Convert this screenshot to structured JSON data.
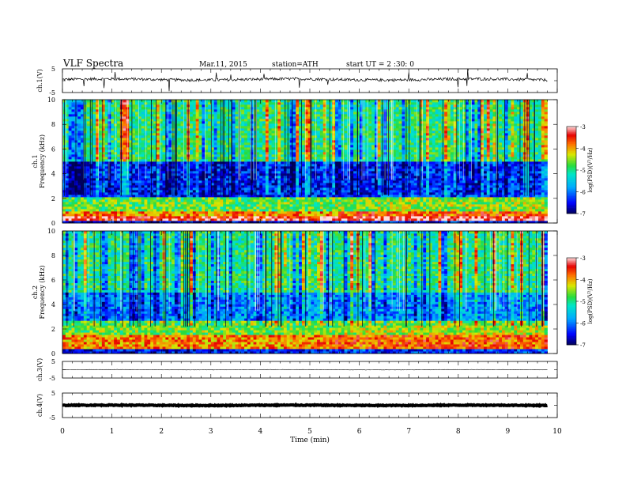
{
  "header": {
    "title": "VLF Spectra",
    "date": "Mar.11, 2015",
    "station": "station=ATH",
    "start": "start UT = 2 :30: 0"
  },
  "chart_data": [
    {
      "type": "line",
      "panel": "ch1-waveform",
      "ylabel": "ch.1(V)",
      "ylim": [
        -5,
        5
      ],
      "yticks": [
        "5",
        "-5"
      ],
      "xlim": [
        0,
        10
      ],
      "data_xmax": 9.8,
      "baseline": 0.5,
      "series_color": "#000000"
    },
    {
      "type": "heatmap",
      "panel": "ch1-spectrogram",
      "ylabel_top": "ch.1",
      "ylabel": "Frequency (kHz)",
      "ylim": [
        0,
        10
      ],
      "yticks": [
        "0",
        "2",
        "4",
        "6",
        "8",
        "10"
      ],
      "xlim": [
        0,
        10
      ],
      "data_xmax": 9.8,
      "colorbar": {
        "label": "log(PSD)(V²/Hz)",
        "range": [
          -7,
          -3
        ],
        "ticks": [
          "-3",
          "-4",
          "-5",
          "-6",
          "-7"
        ]
      },
      "bands_khz": [
        {
          "f0": 0.0,
          "f1": 0.25,
          "level": -6.6
        },
        {
          "f0": 0.25,
          "f1": 0.55,
          "level": -3.3
        },
        {
          "f0": 0.55,
          "f1": 1.0,
          "level": -3.9
        },
        {
          "f0": 1.0,
          "f1": 2.2,
          "level": -4.7
        },
        {
          "f0": 2.2,
          "f1": 5.0,
          "level": -6.4
        },
        {
          "f0": 5.0,
          "f1": 10.0,
          "level": -5.0
        }
      ]
    },
    {
      "type": "heatmap",
      "panel": "ch2-spectrogram",
      "ylabel_top": "ch.2",
      "ylabel": "Frequency (kHz)",
      "ylim": [
        0,
        10
      ],
      "yticks": [
        "0",
        "2",
        "4",
        "6",
        "8",
        "10"
      ],
      "xlim": [
        0,
        10
      ],
      "data_xmax": 9.8,
      "colorbar": {
        "label": "log(PSD)(V²/Hz)",
        "range": [
          -7,
          -3
        ],
        "ticks": [
          "-3",
          "-4",
          "-5",
          "-6",
          "-7"
        ]
      },
      "bands_khz": [
        {
          "f0": 0.0,
          "f1": 0.3,
          "level": -6.5
        },
        {
          "f0": 0.3,
          "f1": 1.6,
          "level": -3.9
        },
        {
          "f0": 1.6,
          "f1": 2.6,
          "level": -4.6
        },
        {
          "f0": 2.6,
          "f1": 5.0,
          "level": -5.9
        },
        {
          "f0": 5.0,
          "f1": 10.0,
          "level": -5.0
        }
      ]
    },
    {
      "type": "line",
      "panel": "ch3-waveform",
      "ylabel": "ch.3(V)",
      "ylim": [
        -5,
        5
      ],
      "yticks": [
        "5",
        "-5"
      ],
      "xlim": [
        0,
        10
      ],
      "data_xmax": 9.8,
      "baseline": 0.0,
      "series_color": "#000000"
    },
    {
      "type": "line",
      "panel": "ch4-waveform",
      "ylabel": "ch.4(V)",
      "ylim": [
        -5,
        5
      ],
      "yticks": [
        "5",
        "-5"
      ],
      "xlim": [
        0,
        10
      ],
      "data_xmax": 9.8,
      "baseline": 0.0,
      "series_color": "#000000",
      "xlabel": "Time (min)",
      "xticks": [
        "0",
        "1",
        "2",
        "3",
        "4",
        "5",
        "6",
        "7",
        "8",
        "9",
        "10"
      ]
    }
  ]
}
